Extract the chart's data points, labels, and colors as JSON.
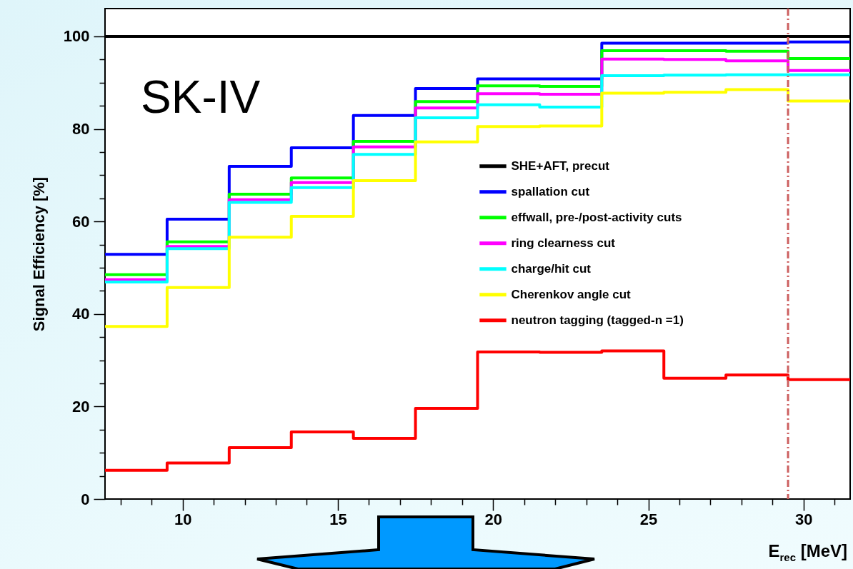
{
  "chart_data": {
    "type": "histogram",
    "xlabel": "E$_{rec}$ [MeV]",
    "ylabel": "Signal Efficiency [%]",
    "annotations": [
      "SK-IV"
    ],
    "bins": [
      7.5,
      9.5,
      11.5,
      13.5,
      15.5,
      17.5,
      19.5,
      21.5,
      23.5,
      25.5,
      27.5,
      29.5,
      31.5
    ],
    "series": [
      {
        "name": "SHE+AFT, precut",
        "color": "#000000",
        "values": [
          100,
          100,
          100,
          100,
          100,
          100,
          100,
          100,
          100,
          100,
          100,
          100
        ]
      },
      {
        "name": "spallation cut",
        "color": "#0000ff",
        "values": [
          52.9,
          60.5,
          71.9,
          75.9,
          82.9,
          88.7,
          90.8,
          90.8,
          98.5,
          98.5,
          98.5,
          98.8
        ]
      },
      {
        "name": "effwall, pre-/post-activity cuts",
        "color": "#00ff00",
        "values": [
          48.5,
          55.6,
          65.9,
          69.4,
          77.3,
          85.9,
          89.3,
          89.2,
          96.9,
          96.9,
          96.8,
          95.2
        ]
      },
      {
        "name": "ring clearness cut",
        "color": "#ff00ff",
        "values": [
          47.4,
          54.6,
          64.7,
          68.4,
          76.1,
          84.5,
          87.6,
          87.5,
          95.1,
          95.0,
          94.7,
          92.6
        ]
      },
      {
        "name": "charge/hit cut",
        "color": "#00ffff",
        "values": [
          46.9,
          54.1,
          64.1,
          67.3,
          74.5,
          82.4,
          85.2,
          84.7,
          91.5,
          91.6,
          91.7,
          91.7
        ]
      },
      {
        "name": "Cherenkov angle cut",
        "color": "#ffff00",
        "values": [
          37.3,
          45.7,
          56.6,
          61.1,
          68.8,
          77.2,
          80.5,
          80.6,
          87.7,
          87.9,
          88.5,
          86.0
        ]
      },
      {
        "name": "neutron tagging (tagged-n =1)",
        "color": "#ff0000",
        "values": [
          6.2,
          7.8,
          11.1,
          14.5,
          13.1,
          19.6,
          31.8,
          31.7,
          32.0,
          26.1,
          26.8,
          25.8
        ]
      }
    ],
    "xlim": [
      7.5,
      31.5
    ],
    "xticks": [
      {
        "value": 8,
        "label": null
      },
      {
        "value": 9,
        "label": null
      },
      10,
      {
        "value": 11,
        "label": null
      },
      {
        "value": 12,
        "label": null
      },
      {
        "value": 13,
        "label": null
      },
      {
        "value": 14,
        "label": null
      },
      15,
      {
        "value": 16,
        "label": null
      },
      {
        "value": 17,
        "label": null
      },
      {
        "value": 18,
        "label": null
      },
      {
        "value": 19,
        "label": null
      },
      20,
      {
        "value": 21,
        "label": null
      },
      {
        "value": 22,
        "label": null
      },
      {
        "value": 23,
        "label": null
      },
      {
        "value": 24,
        "label": null
      },
      25,
      {
        "value": 26,
        "label": null
      },
      {
        "value": 27,
        "label": null
      },
      {
        "value": 28,
        "label": null
      },
      {
        "value": 29,
        "label": null
      },
      30,
      {
        "value": 31,
        "label": null
      }
    ],
    "ylim": [
      0,
      106
    ],
    "yticks": [
      0,
      {
        "value": 5,
        "label": null
      },
      {
        "value": 10,
        "label": null
      },
      {
        "value": 15,
        "label": null
      },
      20,
      {
        "value": 25,
        "label": null
      },
      {
        "value": 30,
        "label": null
      },
      {
        "value": 35,
        "label": null
      },
      40,
      {
        "value": 45,
        "label": null
      },
      {
        "value": 50,
        "label": null
      },
      {
        "value": 55,
        "label": null
      },
      60,
      {
        "value": 65,
        "label": null
      },
      {
        "value": 70,
        "label": null
      },
      {
        "value": 75,
        "label": null
      },
      80,
      {
        "value": 85,
        "label": null
      },
      {
        "value": 90,
        "label": null
      },
      {
        "value": 95,
        "label": null
      },
      100
    ],
    "ref_lines": [
      {
        "axis": "x",
        "value": 29.5,
        "color": "#cc6060",
        "line_style": "dashdot"
      }
    ],
    "grid": false,
    "legend": "right"
  }
}
